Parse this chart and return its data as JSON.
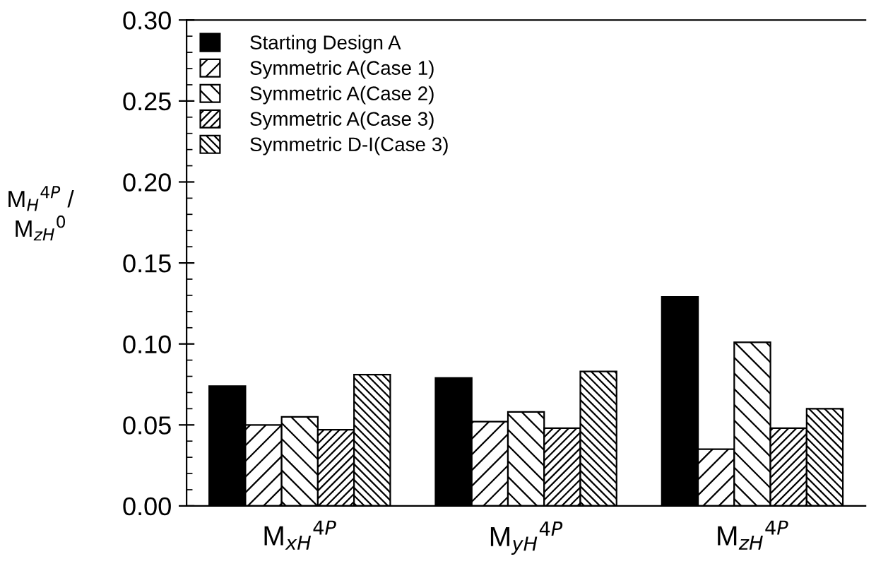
{
  "chart_data": {
    "type": "bar",
    "ylabel": "M$_{H}$$^{4P}$ /\nM$_{zH}$$^{0}$",
    "categories": [
      "M$_{xH}$$^{4P}$",
      "M$_{yH}$$^{4P}$",
      "M$_{zH}$$^{4P}$"
    ],
    "series": [
      {
        "name": "Starting Design A",
        "color": "#000000",
        "values": [
          0.074,
          0.079,
          0.129
        ]
      },
      {
        "name": "Symmetric A(Case 1)",
        "color": "#000000",
        "values": [
          0.05,
          0.052,
          0.035
        ]
      },
      {
        "name": "Symmetric A(Case 2)",
        "color": "#000000",
        "values": [
          0.055,
          0.058,
          0.101
        ]
      },
      {
        "name": "Symmetric A(Case 3)",
        "color": "#000000",
        "values": [
          0.047,
          0.048,
          0.048
        ]
      },
      {
        "name": "Symmetric D-I(Case 3)",
        "color": "#000000",
        "values": [
          0.081,
          0.083,
          0.06
        ]
      }
    ],
    "ylim": [
      0,
      0.3
    ],
    "yticks": [
      {
        "value": 0,
        "label": "0.00"
      },
      {
        "value": 0.05,
        "label": "0.05"
      },
      {
        "value": 0.1,
        "label": "0.10"
      },
      {
        "value": 0.15,
        "label": "0.15"
      },
      {
        "value": 0.2,
        "label": "0.20"
      },
      {
        "value": 0.25,
        "label": "0.25"
      },
      {
        "value": 0.3,
        "label": "0.30"
      }
    ],
    "grid": false,
    "legend": "top left"
  }
}
